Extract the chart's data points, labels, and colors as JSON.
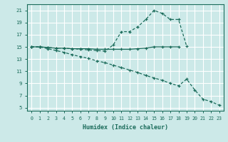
{
  "xlabel": "Humidex (Indice chaleur)",
  "xlim": [
    -0.5,
    23.5
  ],
  "ylim": [
    4.5,
    22
  ],
  "yticks": [
    5,
    7,
    9,
    11,
    13,
    15,
    17,
    19,
    21
  ],
  "xticks": [
    0,
    1,
    2,
    3,
    4,
    5,
    6,
    7,
    8,
    9,
    10,
    11,
    12,
    13,
    14,
    15,
    16,
    17,
    18,
    19,
    20,
    21,
    22,
    23
  ],
  "line_color": "#1a6b5a",
  "bg_color": "#cce9e8",
  "grid_color": "#ffffff",
  "line1_x": [
    0,
    1,
    2,
    3,
    4,
    5,
    6,
    7,
    8,
    9,
    10,
    11,
    12,
    13,
    14,
    15,
    16,
    17,
    18
  ],
  "line1_y": [
    15,
    15,
    14.9,
    14.8,
    14.8,
    14.7,
    14.7,
    14.7,
    14.6,
    14.6,
    14.6,
    14.6,
    14.6,
    14.7,
    14.8,
    15.0,
    15.0,
    15.0,
    15.0
  ],
  "line2_x": [
    0,
    1,
    2,
    3,
    4,
    5,
    6,
    7,
    8,
    9,
    10,
    11,
    12,
    13,
    14,
    15,
    16,
    17,
    18,
    19
  ],
  "line2_y": [
    15,
    15,
    14.9,
    14.8,
    14.8,
    14.7,
    14.6,
    14.5,
    14.4,
    14.3,
    15.3,
    17.5,
    17.5,
    18.3,
    19.5,
    21.0,
    20.5,
    19.5,
    19.5,
    15.1
  ],
  "line3_x": [
    0,
    1,
    2,
    3,
    4,
    5,
    6,
    7,
    8,
    9,
    10,
    11,
    12,
    13,
    14,
    15,
    16,
    17,
    18,
    19,
    20,
    21,
    22,
    23
  ],
  "line3_y": [
    15,
    15,
    14.7,
    14.4,
    14.1,
    13.7,
    13.4,
    13.1,
    12.7,
    12.4,
    12.0,
    11.6,
    11.2,
    10.8,
    10.3,
    9.9,
    9.5,
    9.0,
    8.6,
    9.7,
    7.9,
    6.4,
    6.0,
    5.4
  ]
}
